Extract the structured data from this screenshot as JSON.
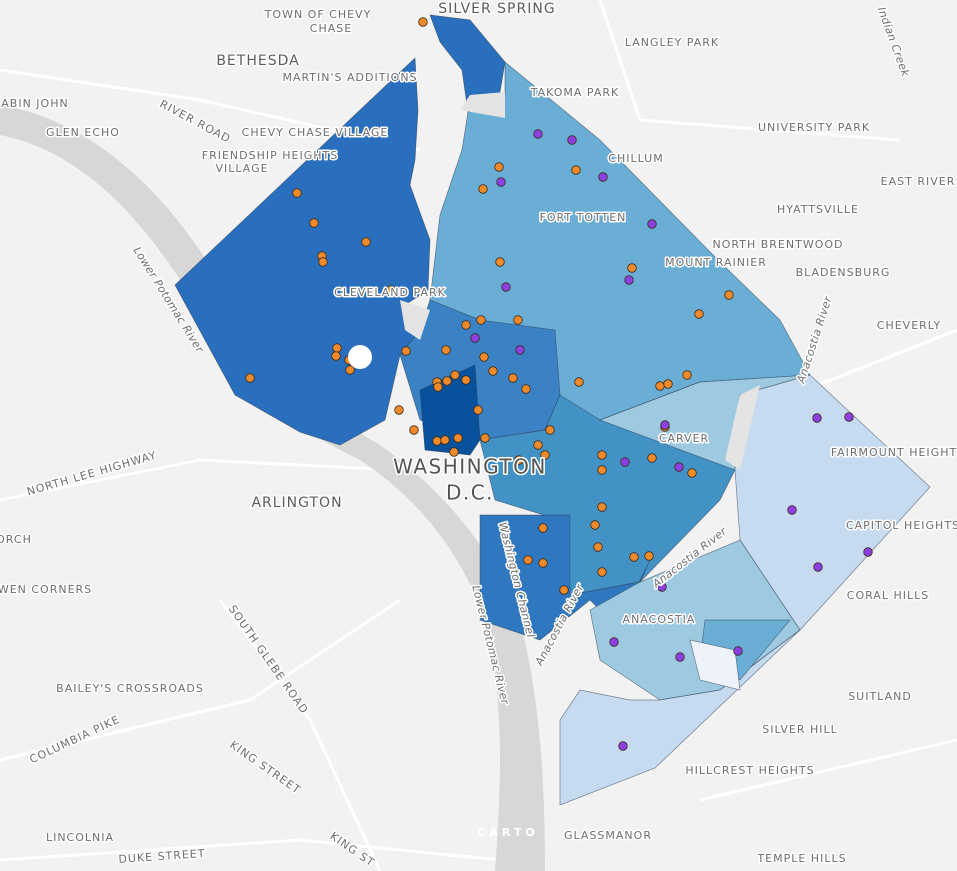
{
  "labels": [
    "TOWN OF CHEVY",
    "CHASE",
    "SILVER SPRING",
    "BETHESDA",
    "MARTIN'S ADDITIONS",
    "LANGLEY PARK",
    "TAKOMA PARK",
    "ABIN JOHN",
    "RIVER ROAD",
    "GLEN ECHO",
    "CHEVY CHASE VILLAGE",
    "UNIVERSITY PARK",
    "FRIENDSHIP HEIGHTS",
    "VILLAGE",
    "CHILLUM",
    "EAST RIVER",
    "HYATTSVILLE",
    "FORT TOTTEN",
    "NORTH BRENTWOOD",
    "MOUNT RAINIER",
    "BLADENSBURG",
    "Lower Potomac River",
    "CLEVELAND PARK",
    "CHEVERLY",
    "Anacostia River",
    "CARVER",
    "FAIRMOUNT HEIGHTS",
    "NORTH LEE HIGHWAY",
    "WASHINGTON",
    "D.C.",
    "ARLINGTON",
    "CAPITOL HEIGHTS",
    "ORCH",
    "Washington Channel",
    "WEN CORNERS",
    "CORAL HILLS",
    "SOUTH GLEBE ROAD",
    "Lower Potomac River",
    "Anacostia River",
    "ANACOSTIA",
    "Anacostia River",
    "SUITLAND",
    "BAILEY'S CROSSROADS",
    "COLUMBIA PIKE",
    "SILVER HILL",
    "KING STREET",
    "HILLCREST HEIGHTS",
    "GLASSMANOR",
    "LINCOLNIA",
    "DUKE STREET",
    "KING ST",
    "TEMPLE HILLS",
    "Indian Creek"
  ],
  "attribution": "CARTO"
}
